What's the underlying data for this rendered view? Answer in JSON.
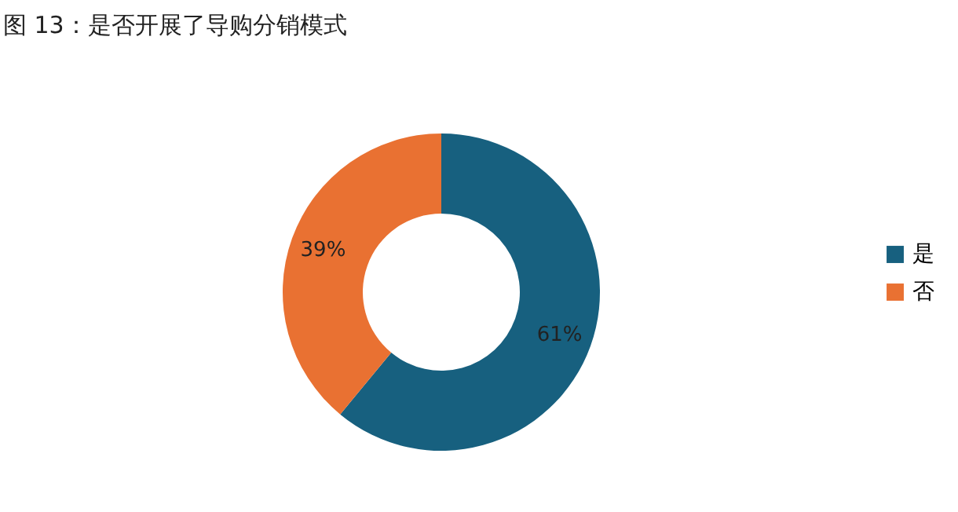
{
  "chart_data": {
    "type": "donut",
    "title": "图 13：是否开展了导购分销模式",
    "categories": [
      "是",
      "否"
    ],
    "values": [
      61,
      39
    ],
    "colors": [
      "#17607f",
      "#e97132"
    ],
    "value_labels": [
      "61%",
      "39%"
    ],
    "legend": "right"
  }
}
